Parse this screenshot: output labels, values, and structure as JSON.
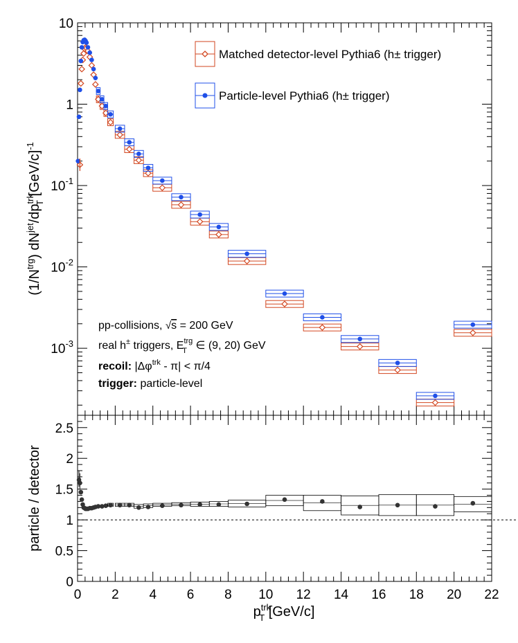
{
  "chart_data": [
    {
      "type": "scatter",
      "panel": "top",
      "yscale": "log",
      "xlim": [
        0,
        22
      ],
      "ylim": [
        0.00015,
        10
      ],
      "ylabel": "(1/N^trg) dN^jet/dp_T^trk [GeV/c]^-1",
      "y_tick_labels": [
        "10",
        "1",
        "10^-1",
        "10^-2",
        "10^-3"
      ],
      "legend_position": "top-right",
      "series": [
        {
          "name": "Matched detector-level Pythia6 (h± trigger)",
          "color": "#d2461f",
          "marker": "open-diamond",
          "x": [
            0.125,
            0.175,
            0.225,
            0.275,
            0.325,
            0.375,
            0.425,
            0.475,
            0.55,
            0.65,
            0.75,
            0.85,
            0.95,
            1.1,
            1.3,
            1.5,
            1.75,
            2.25,
            2.75,
            3.25,
            3.75,
            4.5,
            5.5,
            6.5,
            7.5,
            9,
            11,
            13,
            15,
            17,
            19,
            21
          ],
          "y": [
            0.18,
            1.8,
            2.7,
            3.5,
            4.2,
            4.8,
            5.0,
            4.9,
            4.5,
            3.8,
            3.0,
            2.3,
            1.75,
            1.15,
            0.95,
            0.78,
            0.6,
            0.42,
            0.28,
            0.205,
            0.142,
            0.094,
            0.058,
            0.036,
            0.025,
            0.0118,
            0.0035,
            0.0018,
            0.00105,
            0.00054,
            0.000215,
            0.00155
          ],
          "box_halfwidth": [
            0.025,
            0.025,
            0.025,
            0.025,
            0.025,
            0.025,
            0.025,
            0.025,
            0.05,
            0.05,
            0.05,
            0.05,
            0.05,
            0.1,
            0.1,
            0.1,
            0.15,
            0.25,
            0.25,
            0.25,
            0.25,
            0.5,
            0.5,
            0.5,
            0.5,
            1,
            1,
            1,
            1,
            1,
            1,
            1
          ]
        },
        {
          "name": "Particle-level Pythia6 (h± trigger)",
          "color": "#1f4fe8",
          "marker": "filled-circle",
          "x": [
            0.025,
            0.075,
            0.125,
            0.175,
            0.225,
            0.275,
            0.325,
            0.375,
            0.425,
            0.475,
            0.55,
            0.65,
            0.75,
            0.85,
            0.95,
            1.1,
            1.3,
            1.5,
            1.75,
            2.25,
            2.75,
            3.25,
            3.75,
            4.5,
            5.5,
            6.5,
            7.5,
            9,
            11,
            13,
            15,
            17,
            19,
            21
          ],
          "y": [
            0.2,
            0.7,
            1.5,
            3.4,
            5.0,
            5.8,
            6.1,
            6.2,
            6.0,
            5.7,
            5.0,
            4.3,
            3.5,
            2.7,
            2.1,
            1.45,
            1.15,
            0.95,
            0.75,
            0.5,
            0.34,
            0.245,
            0.165,
            0.115,
            0.072,
            0.044,
            0.031,
            0.0145,
            0.0047,
            0.0024,
            0.0013,
            0.00066,
            0.00026,
            0.00195
          ],
          "box_halfwidth": [
            0.025,
            0.025,
            0.025,
            0.025,
            0.025,
            0.025,
            0.025,
            0.025,
            0.025,
            0.025,
            0.05,
            0.05,
            0.05,
            0.05,
            0.05,
            0.1,
            0.1,
            0.1,
            0.15,
            0.25,
            0.25,
            0.25,
            0.25,
            0.5,
            0.5,
            0.5,
            0.5,
            1,
            1,
            1,
            1,
            1,
            1,
            1
          ]
        }
      ],
      "annotations": [
        "pp-collisions, √s = 200 GeV",
        "real h± triggers, E_T^trg ∈ (9, 20) GeV",
        "recoil: |Δφ^trk - π| < π/4",
        "trigger: particle-level"
      ]
    },
    {
      "type": "scatter",
      "panel": "bottom",
      "xlim": [
        0,
        22
      ],
      "ylim": [
        0,
        2.7
      ],
      "ylabel": "particle / detector",
      "xlabel": "p_T^trk [GeV/c]",
      "x_ticks": [
        0,
        2,
        4,
        6,
        8,
        10,
        12,
        14,
        16,
        18,
        20,
        22
      ],
      "y_ticks": [
        0,
        0.5,
        1,
        1.5,
        2,
        2.5
      ],
      "reference_line": 1,
      "series": [
        {
          "name": "",
          "color": "#333333",
          "x": [
            0.075,
            0.125,
            0.175,
            0.225,
            0.275,
            0.325,
            0.375,
            0.425,
            0.475,
            0.55,
            0.65,
            0.75,
            0.85,
            0.95,
            1.1,
            1.3,
            1.5,
            1.75,
            2.25,
            2.75,
            3.25,
            3.75,
            4.5,
            5.5,
            6.5,
            7.5,
            9,
            11,
            13,
            15,
            17,
            19,
            21
          ],
          "y": [
            1.65,
            1.6,
            1.45,
            1.33,
            1.25,
            1.2,
            1.19,
            1.18,
            1.18,
            1.18,
            1.19,
            1.19,
            1.2,
            1.21,
            1.22,
            1.22,
            1.23,
            1.24,
            1.24,
            1.24,
            1.2,
            1.21,
            1.23,
            1.24,
            1.25,
            1.25,
            1.26,
            1.33,
            1.3,
            1.21,
            1.24,
            1.22,
            1.27
          ],
          "box_lo": [
            null,
            null,
            null,
            null,
            null,
            null,
            null,
            null,
            null,
            null,
            null,
            null,
            null,
            null,
            null,
            null,
            null,
            1.22,
            1.22,
            1.22,
            1.19,
            1.2,
            1.22,
            1.23,
            1.22,
            1.22,
            1.21,
            1.23,
            1.15,
            1.08,
            1.07,
            1.07,
            1.13
          ],
          "box_hi": [
            null,
            null,
            null,
            null,
            null,
            null,
            null,
            null,
            null,
            null,
            null,
            null,
            null,
            null,
            null,
            null,
            null,
            1.27,
            1.27,
            1.27,
            1.25,
            1.26,
            1.27,
            1.28,
            1.29,
            1.3,
            1.32,
            1.4,
            1.4,
            1.39,
            1.41,
            1.41,
            1.38
          ],
          "box_halfwidth": [
            0.025,
            0.025,
            0.025,
            0.025,
            0.025,
            0.025,
            0.025,
            0.025,
            0.025,
            0.05,
            0.05,
            0.05,
            0.05,
            0.05,
            0.1,
            0.1,
            0.1,
            0.15,
            0.25,
            0.25,
            0.25,
            0.25,
            0.5,
            0.5,
            0.5,
            0.5,
            1,
            1,
            1,
            1,
            1,
            1,
            1
          ]
        }
      ]
    }
  ]
}
